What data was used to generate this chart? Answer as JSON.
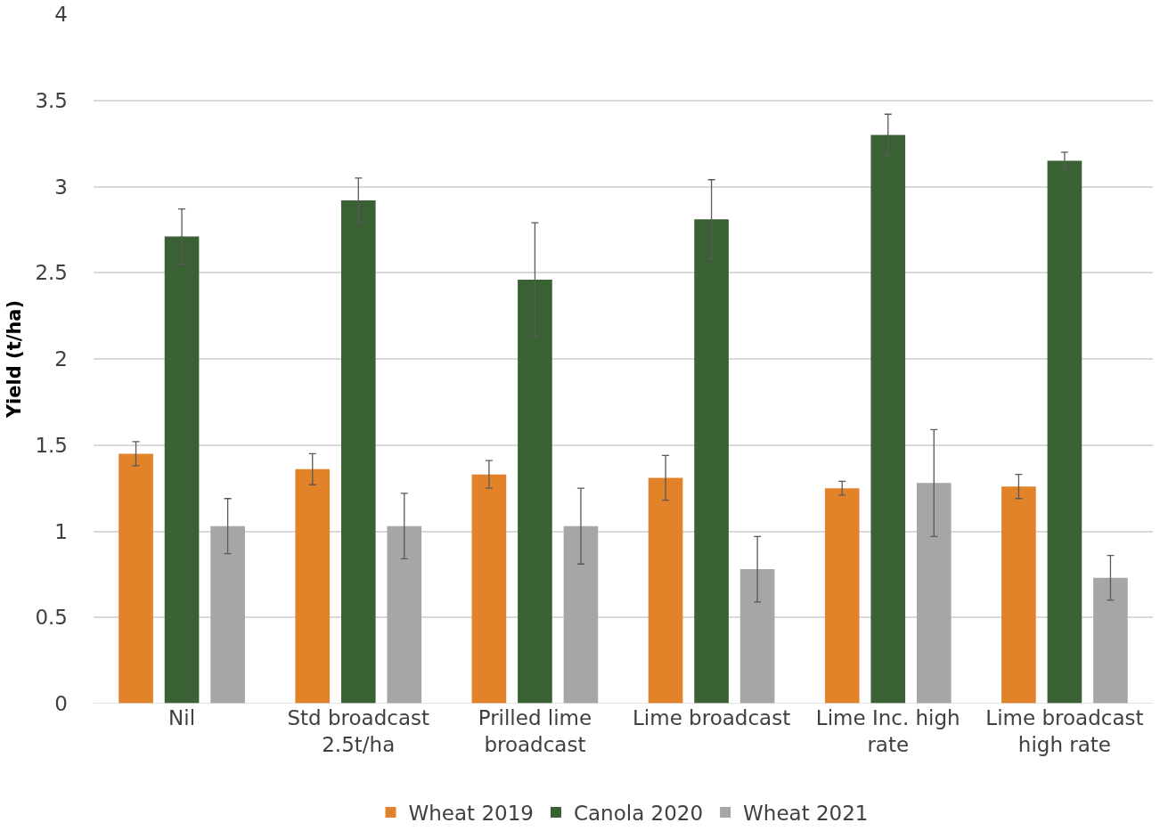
{
  "chart_data": {
    "type": "bar",
    "ylabel": "Yield (t/ha)",
    "categories": [
      "Nil",
      "Std broadcast 2.5t/ha",
      "Prilled lime broadcast",
      "Lime broadcast",
      "Lime Inc. high rate",
      "Lime broadcast high rate"
    ],
    "series": [
      {
        "name": "Wheat 2019",
        "color": "#e2832a",
        "values": [
          1.45,
          1.36,
          1.33,
          1.31,
          1.25,
          1.26
        ],
        "errors": [
          0.07,
          0.09,
          0.08,
          0.13,
          0.04,
          0.07
        ]
      },
      {
        "name": "Canola 2020",
        "color": "#3a6133",
        "values": [
          2.71,
          2.92,
          2.46,
          2.81,
          3.3,
          3.15
        ],
        "errors": [
          0.16,
          0.13,
          0.33,
          0.23,
          0.12,
          0.05
        ]
      },
      {
        "name": "Wheat 2021",
        "color": "#a6a6a6",
        "values": [
          1.03,
          1.03,
          1.03,
          0.78,
          1.28,
          0.73
        ],
        "errors": [
          0.16,
          0.19,
          0.22,
          0.19,
          0.31,
          0.13
        ]
      }
    ],
    "ylim": [
      0,
      4
    ],
    "yticks": [
      0,
      0.5,
      1,
      1.5,
      2,
      2.5,
      3,
      3.5,
      4
    ],
    "grid": "y",
    "legend": "bottom"
  }
}
